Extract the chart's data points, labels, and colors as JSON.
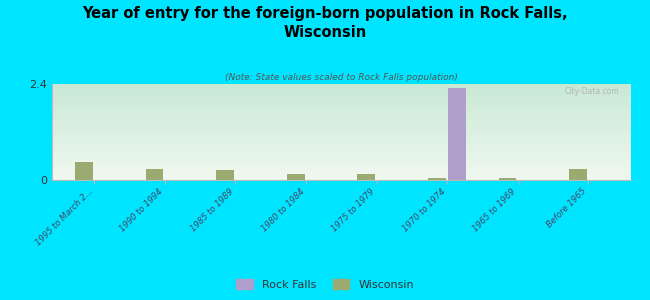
{
  "title": "Year of entry for the foreign-born population in Rock Falls,\nWisconsin",
  "subtitle": "(Note: State values scaled to Rock Falls population)",
  "categories": [
    "1995 to March 2...",
    "1990 to 1994",
    "1985 to 1989",
    "1980 to 1984",
    "1975 to 1979",
    "1970 to 1974",
    "1965 to 1969",
    "Before 1965"
  ],
  "rock_falls_values": [
    0.0,
    0.0,
    0.0,
    0.0,
    0.0,
    2.3,
    0.0,
    0.0
  ],
  "wisconsin_values": [
    0.45,
    0.28,
    0.24,
    0.14,
    0.15,
    0.06,
    0.05,
    0.28
  ],
  "rock_falls_color": "#b09fcc",
  "wisconsin_color": "#9aaa70",
  "background_color": "#00e5ff",
  "plot_bg_top": "#f0f8f0",
  "plot_bg_bottom": "#c8e8d4",
  "ylim": [
    0,
    2.4
  ],
  "yticks": [
    0,
    2.4
  ],
  "watermark": "City-Data.com",
  "bar_width": 0.25,
  "legend_labels": [
    "Rock Falls",
    "Wisconsin"
  ]
}
